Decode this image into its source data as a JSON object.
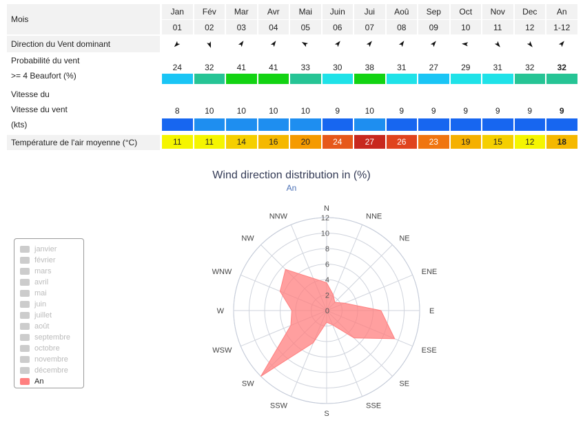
{
  "table": {
    "row_labels": {
      "mois": "Mois",
      "direction": "Direction du Vent dominant",
      "prob_line1": "Probabilité du vent",
      "prob_line2": ">= 4 Beaufort (%)",
      "speed_line1": "Vitesse du",
      "speed_line2": "Vitesse du vent",
      "speed_line3": "(kts)",
      "temp": "Température de l'air moyenne (°C)"
    },
    "months": [
      "Jan",
      "Fév",
      "Mar",
      "Avr",
      "Mai",
      "Juin",
      "Jui",
      "Aoû",
      "Sep",
      "Oct",
      "Nov",
      "Dec",
      "An"
    ],
    "month_nums": [
      "01",
      "02",
      "03",
      "04",
      "05",
      "06",
      "07",
      "08",
      "09",
      "10",
      "11",
      "12",
      "1-12"
    ],
    "direction_icons": [
      "arrow-northeast-icon",
      "arrow-southeast-icon",
      "arrow-southwest-icon",
      "arrow-southwest-icon",
      "arrow-northwest-icon",
      "arrow-southwest-icon",
      "arrow-southwest-icon",
      "arrow-southwest-icon",
      "arrow-southwest-icon",
      "arrow-west-icon",
      "arrow-southeast-icon",
      "arrow-southeast-icon",
      "arrow-southwest-icon"
    ],
    "direction_angles": [
      225,
      160,
      35,
      35,
      300,
      40,
      40,
      35,
      40,
      275,
      140,
      140,
      40
    ],
    "probability": [
      24,
      32,
      41,
      41,
      33,
      30,
      38,
      31,
      27,
      29,
      31,
      32,
      32
    ],
    "probability_colors": [
      "#1ac5f5",
      "#26c495",
      "#13d313",
      "#13d313",
      "#26c495",
      "#1fe2e8",
      "#13d313",
      "#1fe2e8",
      "#1ac5f5",
      "#1fe2e8",
      "#1fe2e8",
      "#26c495",
      "#26c495"
    ],
    "speed": [
      8,
      10,
      10,
      10,
      10,
      9,
      10,
      9,
      9,
      9,
      9,
      9,
      9
    ],
    "speed_colors": [
      "#1766f0",
      "#1e8ef0",
      "#1e8ef0",
      "#1e8ef0",
      "#1e8ef0",
      "#1766f0",
      "#1e8ef0",
      "#1766f0",
      "#1766f0",
      "#1766f0",
      "#1766f0",
      "#1766f0",
      "#1766f0"
    ],
    "temperature": [
      11,
      11,
      14,
      16,
      20,
      24,
      27,
      26,
      23,
      19,
      15,
      12,
      18
    ],
    "temperature_colors": [
      "#f5f500",
      "#f5f500",
      "#f5cf00",
      "#f5b800",
      "#f59a00",
      "#e6581a",
      "#c8281e",
      "#e0441e",
      "#f07510",
      "#f5b000",
      "#f5cf00",
      "#f5f500",
      "#f5b800"
    ]
  },
  "chart_data": {
    "type": "polar-area",
    "title": "Wind direction distribution in (%)",
    "subtitle": "An",
    "directions": [
      "N",
      "NNE",
      "NE",
      "ENE",
      "E",
      "ESE",
      "SE",
      "SSE",
      "S",
      "SSW",
      "SW",
      "WSW",
      "W",
      "WNW",
      "NW",
      "NNW"
    ],
    "radial_ticks": [
      "0",
      "2",
      "4",
      "6",
      "8",
      "10",
      "12"
    ],
    "rmax": 12,
    "series": [
      {
        "name": "An",
        "color": "#ff7f7f",
        "values": [
          3.6,
          2.2,
          1.5,
          2.5,
          7.0,
          9.5,
          5.0,
          2.0,
          1.5,
          4.5,
          12.0,
          5.0,
          4.5,
          6.5,
          7.5,
          4.5
        ]
      }
    ],
    "legend_position": "left"
  },
  "legend": {
    "items": [
      "janvier",
      "février",
      "mars",
      "avril",
      "mai",
      "juin",
      "juillet",
      "août",
      "septembre",
      "octobre",
      "novembre",
      "décembre",
      "An"
    ],
    "active": "An"
  }
}
